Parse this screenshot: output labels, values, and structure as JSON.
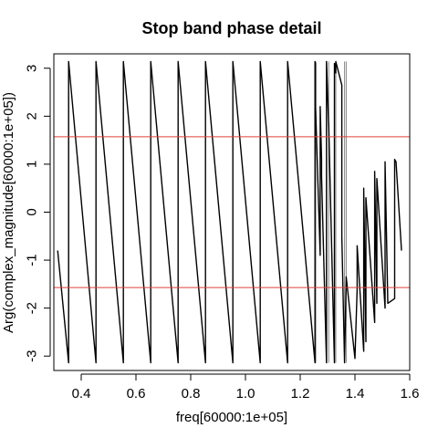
{
  "chart_data": {
    "type": "line",
    "title": "Stop band phase detail",
    "xlabel": "freq[60000:1e+05]",
    "ylabel": "Arg(complex_magnitude[60000:1e+05])",
    "xlim": [
      0.3,
      1.6
    ],
    "ylim": [
      -3.3,
      3.3
    ],
    "x_ticks": [
      0.4,
      0.6,
      0.8,
      1.0,
      1.2,
      1.4,
      1.6
    ],
    "x_tick_labels": [
      "0.4",
      "0.6",
      "0.8",
      "1.0",
      "1.2",
      "1.4",
      "1.6"
    ],
    "y_ticks": [
      -3,
      -2,
      -1,
      0,
      1,
      2,
      3
    ],
    "y_tick_labels": [
      "-3",
      "-2",
      "-1",
      "0",
      "1",
      "2",
      "3"
    ],
    "grid": false,
    "series": [
      {
        "color": "#000000",
        "x": [
          0.314,
          0.354,
          0.354,
          0.454,
          0.454,
          0.554,
          0.554,
          0.654,
          0.654,
          0.754,
          0.754,
          0.854,
          0.854,
          0.954,
          0.954,
          1.054,
          1.054,
          1.154,
          1.154,
          1.254,
          1.254,
          1.256,
          1.256,
          1.273,
          1.273,
          1.278,
          1.278,
          1.296,
          1.296,
          1.304,
          1.304,
          1.325,
          1.325,
          1.33,
          1.33,
          1.352,
          1.352,
          1.362,
          1.362,
          1.368,
          1.368,
          1.4,
          1.4,
          1.408,
          1.408,
          1.432,
          1.432,
          1.44,
          1.44,
          1.472,
          1.472,
          1.48,
          1.48,
          1.51,
          1.51,
          1.52,
          1.52,
          1.545,
          1.545,
          1.55,
          1.55,
          1.57
        ],
        "y": [
          -0.8,
          -3.14,
          3.14,
          -3.14,
          3.14,
          -3.14,
          3.14,
          -3.14,
          3.14,
          -3.14,
          3.14,
          -3.14,
          3.14,
          -3.14,
          3.14,
          -3.14,
          3.14,
          -3.14,
          3.14,
          -3.14,
          3.14,
          3.1,
          2.2,
          -0.9,
          2.2,
          1.1,
          0.75,
          -3.14,
          3.14,
          1.8,
          1.85,
          -3.14,
          3.1,
          2.9,
          3.14,
          2.65,
          -0.5,
          -3.14,
          -3.1,
          -1.4,
          -1.35,
          -3.05,
          -3.05,
          -1.6,
          -0.7,
          -2.9,
          0.5,
          -2.7,
          0.3,
          -2.3,
          0.85,
          -1.9,
          0.7,
          -2.0,
          1.05,
          -1.9,
          -1.9,
          -1.8,
          1.1,
          1.05,
          1.05,
          -0.8
        ]
      }
    ],
    "hlines": [
      {
        "y": 1.5708,
        "color": "#e0403a"
      },
      {
        "y": -1.5708,
        "color": "#e0403a"
      }
    ],
    "vlines": [
      {
        "x": 1.257,
        "y_from": -3.14,
        "y_to": 3.14,
        "color": "#888888"
      },
      {
        "x": 1.296,
        "y_from": -3.14,
        "y_to": 3.14,
        "color": "#888888"
      },
      {
        "x": 1.304,
        "y_from": -3.14,
        "y_to": 3.14,
        "color": "#888888"
      },
      {
        "x": 1.33,
        "y_from": -3.14,
        "y_to": 3.14,
        "color": "#888888"
      },
      {
        "x": 1.362,
        "y_from": -3.14,
        "y_to": 3.14,
        "color": "#888888"
      },
      {
        "x": 1.368,
        "y_from": -3.14,
        "y_to": 3.14,
        "color": "#888888"
      },
      {
        "x": 0.354,
        "y_from": -3.14,
        "y_to": 3.14,
        "color": "#666666"
      }
    ]
  }
}
